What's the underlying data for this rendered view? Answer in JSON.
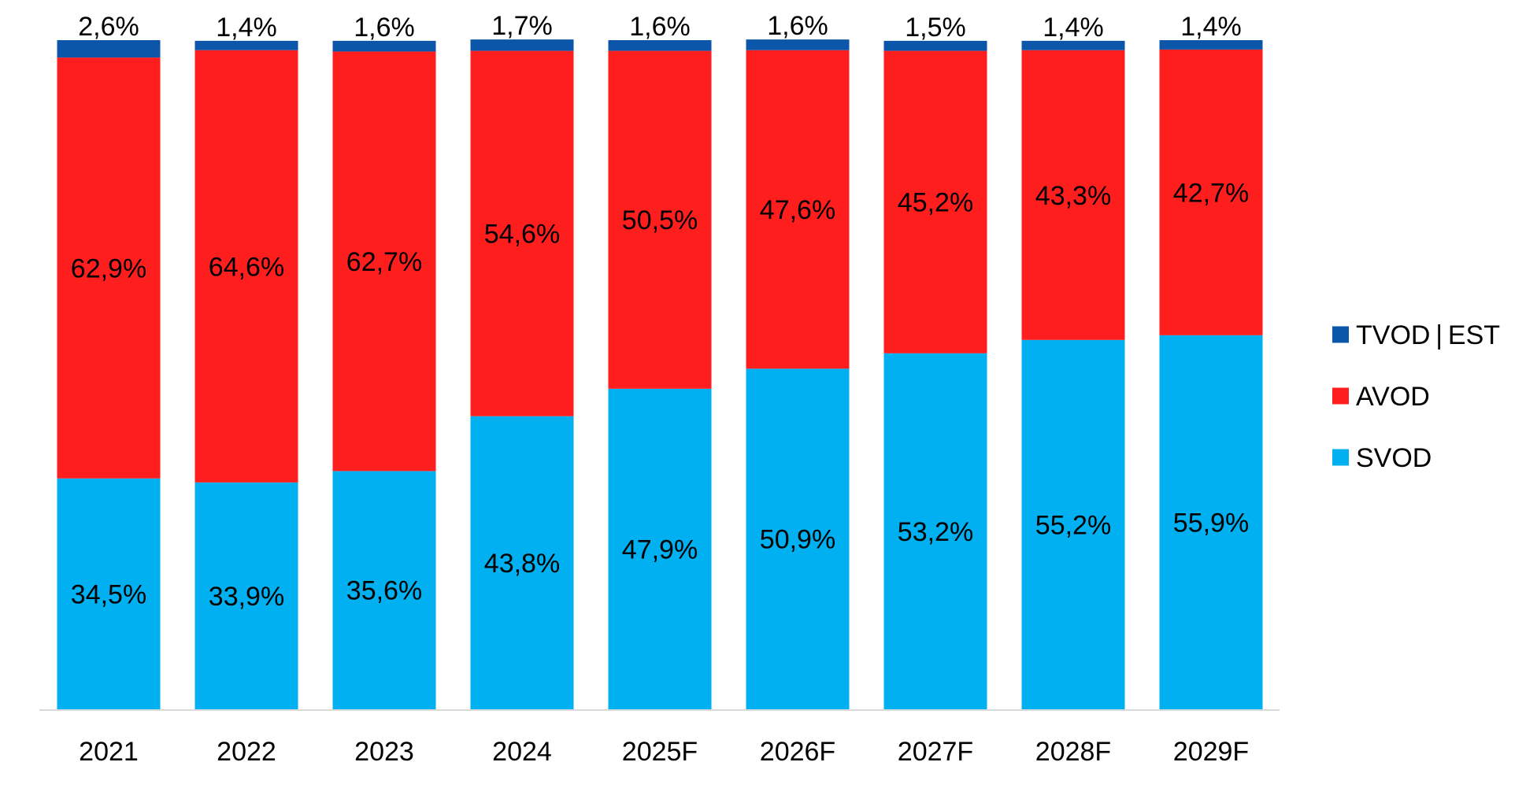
{
  "chart_data": {
    "type": "bar",
    "stacked": true,
    "title": "",
    "xlabel": "",
    "ylabel": "",
    "ylim": [
      0,
      100
    ],
    "grid": false,
    "legend_position": "right",
    "categories": [
      "2021",
      "2022",
      "2023",
      "2024",
      "2025F",
      "2026F",
      "2027F",
      "2028F",
      "2029F"
    ],
    "series": [
      {
        "name": "SVOD",
        "color": "#00B0F0",
        "values": [
          34.5,
          33.9,
          35.6,
          43.8,
          47.9,
          50.9,
          53.2,
          55.2,
          55.9
        ],
        "labels": [
          "34,5%",
          "33,9%",
          "35,6%",
          "43,8%",
          "47,9%",
          "50,9%",
          "53,2%",
          "55,2%",
          "55,9%"
        ]
      },
      {
        "name": "AVOD",
        "color": "#FF1E1E",
        "values": [
          62.9,
          64.6,
          62.7,
          54.6,
          50.5,
          47.6,
          45.2,
          43.3,
          42.7
        ],
        "labels": [
          "62,9%",
          "64,6%",
          "62,7%",
          "54,6%",
          "50,5%",
          "47,6%",
          "45,2%",
          "43,3%",
          "42,7%"
        ]
      },
      {
        "name": "TVOD | EST",
        "color": "#0B56A8",
        "values": [
          2.6,
          1.4,
          1.6,
          1.7,
          1.6,
          1.6,
          1.5,
          1.4,
          1.4
        ],
        "labels": [
          "2,6%",
          "1,4%",
          "1,6%",
          "1,7%",
          "1,6%",
          "1,6%",
          "1,5%",
          "1,4%",
          "1,4%"
        ]
      }
    ],
    "legend_order": [
      "TVOD | EST",
      "AVOD",
      "SVOD"
    ],
    "axis_color": "#D9D9D9"
  }
}
